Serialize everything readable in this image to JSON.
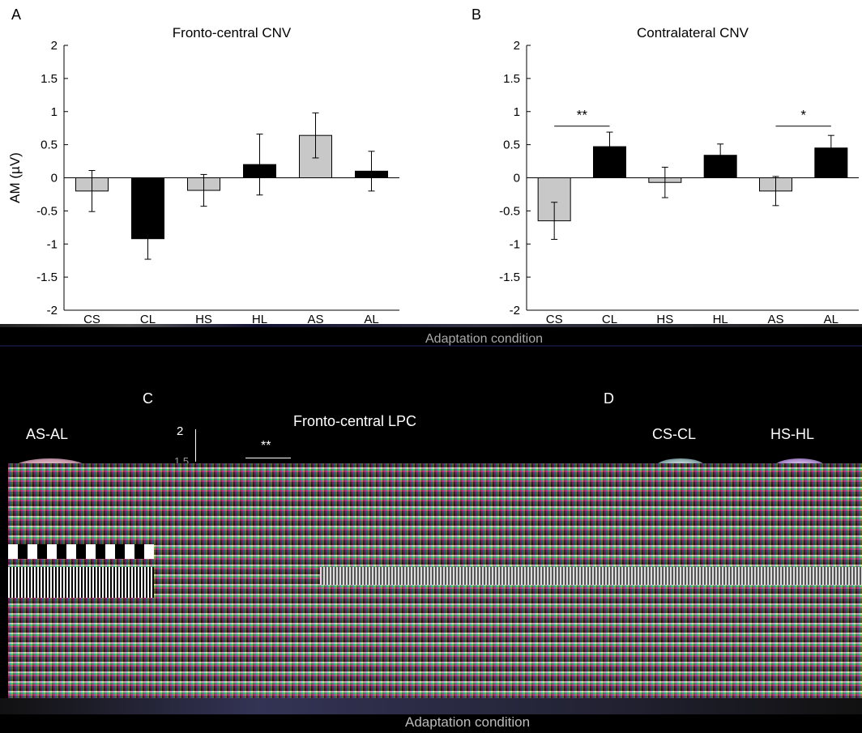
{
  "panels": {
    "A": {
      "letter": "A"
    },
    "B": {
      "letter": "B"
    },
    "C": {
      "letter": "C"
    },
    "D": {
      "letter": "D"
    }
  },
  "bottom": {
    "c_title": "Fronto-central LPC",
    "c_tick_top": "2",
    "c_tick_second": "1.5",
    "c_sig": "**",
    "c_xlabel": "Adaptation condition",
    "d_labels": [
      "AS-AL",
      "CS-CL",
      "HS-HL"
    ]
  },
  "top_xlabel": "Adaptation condition",
  "colors": {
    "light_bar": "#c8c8c8",
    "dark_bar": "#000000"
  },
  "chart_data": [
    {
      "type": "bar",
      "title": "Fronto-central CNV",
      "ylabel": "AM (µV)",
      "xlabel": "",
      "categories": [
        "CS",
        "CL",
        "HS",
        "HL",
        "AS",
        "AL"
      ],
      "values": [
        -0.2,
        -0.92,
        -0.19,
        0.2,
        0.64,
        0.1
      ],
      "errors": [
        0.31,
        0.31,
        0.24,
        0.46,
        0.34,
        0.3
      ],
      "bar_colors": [
        "#c8c8c8",
        "#000000",
        "#c8c8c8",
        "#000000",
        "#c8c8c8",
        "#000000"
      ],
      "ylim": [
        -2,
        2
      ],
      "yticks": [
        "-2",
        "-1.5",
        "-1",
        "-0.5",
        "0",
        "0.5",
        "1",
        "1.5",
        "2"
      ],
      "significance": []
    },
    {
      "type": "bar",
      "title": "Contralateral CNV",
      "ylabel": "",
      "xlabel": "Adaptation condition",
      "categories": [
        "CS",
        "CL",
        "HS",
        "HL",
        "AS",
        "AL"
      ],
      "values": [
        -0.65,
        0.47,
        -0.07,
        0.34,
        -0.2,
        0.45
      ],
      "errors": [
        0.28,
        0.22,
        0.23,
        0.17,
        0.22,
        0.19
      ],
      "bar_colors": [
        "#c8c8c8",
        "#000000",
        "#c8c8c8",
        "#000000",
        "#c8c8c8",
        "#000000"
      ],
      "ylim": [
        -2,
        2
      ],
      "yticks": [
        "-2",
        "-1.5",
        "-1",
        "-0.5",
        "0",
        "0.5",
        "1",
        "1.5",
        "2"
      ],
      "significance": [
        {
          "from": 0,
          "to": 1,
          "label": "**",
          "y": 0.78
        },
        {
          "from": 4,
          "to": 5,
          "label": "*",
          "y": 0.78
        }
      ]
    }
  ]
}
